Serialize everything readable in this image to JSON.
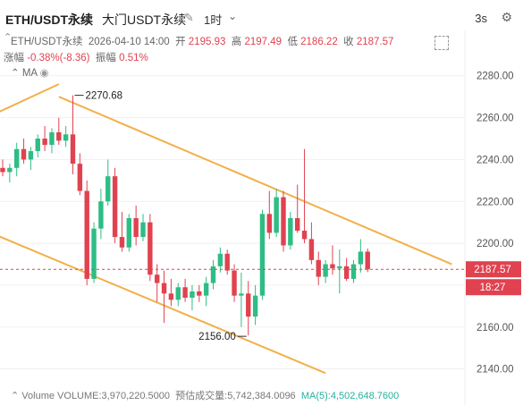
{
  "header": {
    "symbol": "ETH/USDT永续",
    "venue": "大门USDT永续",
    "edit_icon": "edit-icon",
    "timeframe": "1时",
    "refresh": "3s",
    "settings_icon": "gear-icon"
  },
  "info": {
    "symbol": "ETH/USDT永续",
    "datetime": "2026-04-10 14:00",
    "open_label": "开",
    "open": "2195.93",
    "high_label": "高",
    "high": "2197.49",
    "low_label": "低",
    "low": "2186.22",
    "close_label": "收",
    "close": "2187.57",
    "change_label": "涨幅",
    "change": "-0.38%(-8.36)",
    "amp_label": "振幅",
    "amp": "0.51%",
    "ma_label": "MA"
  },
  "volume": {
    "label": "Volume",
    "volume": "VOLUME:3,970,220.5000",
    "estimate": "预估成交量:5,742,384.0096",
    "ma5": "MA(5):4,502,648.7600"
  },
  "chart_data": {
    "type": "candlestick",
    "y_ticks": [
      "2280.00",
      "2260.00",
      "2240.00",
      "2220.00",
      "2200.00",
      "2180.00",
      "2160.00",
      "2140.00"
    ],
    "ylim": [
      2136,
      2288
    ],
    "last_price": "2187.57",
    "countdown": "18:27",
    "annotations": [
      {
        "label": "2270.68",
        "value": 2270.68
      },
      {
        "label": "2156.00",
        "value": 2156.0
      }
    ],
    "colors": {
      "up": "#2ebd85",
      "down": "#e0424f",
      "channel": "#f2b04a"
    },
    "channel": [
      {
        "from": [
          -1,
          2262
        ],
        "to": [
          8,
          2276
        ]
      },
      {
        "from": [
          8,
          2270
        ],
        "to": [
          64,
          2190
        ]
      },
      {
        "from": [
          -1,
          2204
        ],
        "to": [
          46,
          2138
        ]
      }
    ],
    "candles": [
      {
        "o": 2236,
        "h": 2240,
        "l": 2232,
        "c": 2234
      },
      {
        "o": 2234,
        "h": 2238,
        "l": 2229,
        "c": 2236
      },
      {
        "o": 2236,
        "h": 2248,
        "l": 2232,
        "c": 2245
      },
      {
        "o": 2245,
        "h": 2250,
        "l": 2238,
        "c": 2240
      },
      {
        "o": 2240,
        "h": 2246,
        "l": 2235,
        "c": 2244
      },
      {
        "o": 2244,
        "h": 2252,
        "l": 2241,
        "c": 2250
      },
      {
        "o": 2250,
        "h": 2256,
        "l": 2244,
        "c": 2247
      },
      {
        "o": 2247,
        "h": 2255,
        "l": 2243,
        "c": 2253
      },
      {
        "o": 2253,
        "h": 2260,
        "l": 2247,
        "c": 2249
      },
      {
        "o": 2249,
        "h": 2256,
        "l": 2246,
        "c": 2252
      },
      {
        "o": 2252,
        "h": 2270.68,
        "l": 2233,
        "c": 2238
      },
      {
        "o": 2238,
        "h": 2243,
        "l": 2223,
        "c": 2225
      },
      {
        "o": 2225,
        "h": 2230,
        "l": 2180,
        "c": 2183
      },
      {
        "o": 2183,
        "h": 2210,
        "l": 2181,
        "c": 2207
      },
      {
        "o": 2207,
        "h": 2226,
        "l": 2202,
        "c": 2220
      },
      {
        "o": 2220,
        "h": 2240,
        "l": 2218,
        "c": 2232
      },
      {
        "o": 2232,
        "h": 2236,
        "l": 2200,
        "c": 2203
      },
      {
        "o": 2203,
        "h": 2215,
        "l": 2196,
        "c": 2198
      },
      {
        "o": 2198,
        "h": 2214,
        "l": 2196,
        "c": 2212
      },
      {
        "o": 2212,
        "h": 2218,
        "l": 2199,
        "c": 2203
      },
      {
        "o": 2203,
        "h": 2214,
        "l": 2201,
        "c": 2210
      },
      {
        "o": 2210,
        "h": 2214,
        "l": 2182,
        "c": 2185
      },
      {
        "o": 2185,
        "h": 2190,
        "l": 2172,
        "c": 2181
      },
      {
        "o": 2181,
        "h": 2187,
        "l": 2162,
        "c": 2176
      },
      {
        "o": 2176,
        "h": 2183,
        "l": 2170,
        "c": 2173
      },
      {
        "o": 2173,
        "h": 2181,
        "l": 2170,
        "c": 2179
      },
      {
        "o": 2179,
        "h": 2183,
        "l": 2172,
        "c": 2174
      },
      {
        "o": 2174,
        "h": 2180,
        "l": 2168,
        "c": 2177
      },
      {
        "o": 2177,
        "h": 2180,
        "l": 2172,
        "c": 2175
      },
      {
        "o": 2175,
        "h": 2184,
        "l": 2170,
        "c": 2181
      },
      {
        "o": 2181,
        "h": 2192,
        "l": 2178,
        "c": 2189
      },
      {
        "o": 2189,
        "h": 2198,
        "l": 2186,
        "c": 2195
      },
      {
        "o": 2195,
        "h": 2197,
        "l": 2185,
        "c": 2187
      },
      {
        "o": 2187,
        "h": 2190,
        "l": 2172,
        "c": 2175
      },
      {
        "o": 2175,
        "h": 2186,
        "l": 2160,
        "c": 2176
      },
      {
        "o": 2176,
        "h": 2182,
        "l": 2156,
        "c": 2165
      },
      {
        "o": 2165,
        "h": 2180,
        "l": 2161,
        "c": 2175
      },
      {
        "o": 2175,
        "h": 2216,
        "l": 2173,
        "c": 2214
      },
      {
        "o": 2214,
        "h": 2225,
        "l": 2202,
        "c": 2205
      },
      {
        "o": 2205,
        "h": 2226,
        "l": 2203,
        "c": 2222
      },
      {
        "o": 2222,
        "h": 2225,
        "l": 2196,
        "c": 2199
      },
      {
        "o": 2199,
        "h": 2215,
        "l": 2197,
        "c": 2212
      },
      {
        "o": 2212,
        "h": 2228,
        "l": 2205,
        "c": 2206
      },
      {
        "o": 2206,
        "h": 2245,
        "l": 2200,
        "c": 2202
      },
      {
        "o": 2202,
        "h": 2210,
        "l": 2190,
        "c": 2192
      },
      {
        "o": 2192,
        "h": 2196,
        "l": 2180,
        "c": 2184
      },
      {
        "o": 2184,
        "h": 2192,
        "l": 2181,
        "c": 2190
      },
      {
        "o": 2190,
        "h": 2199,
        "l": 2185,
        "c": 2188
      },
      {
        "o": 2188,
        "h": 2197,
        "l": 2176,
        "c": 2189
      },
      {
        "o": 2189,
        "h": 2193,
        "l": 2182,
        "c": 2183
      },
      {
        "o": 2183,
        "h": 2192,
        "l": 2181,
        "c": 2190
      },
      {
        "o": 2190,
        "h": 2202,
        "l": 2186,
        "c": 2196
      },
      {
        "o": 2196,
        "h": 2197.49,
        "l": 2186.22,
        "c": 2187.57
      }
    ]
  }
}
